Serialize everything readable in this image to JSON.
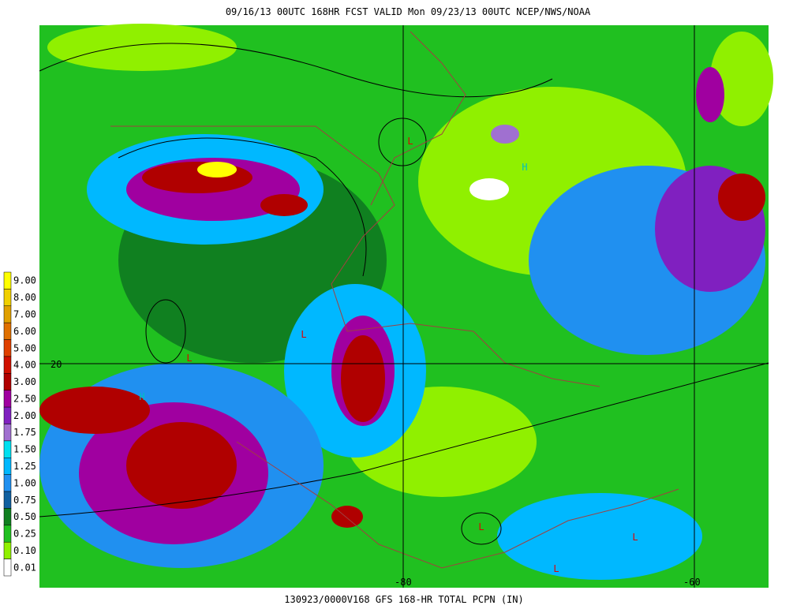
{
  "header": {
    "title": "09/16/13 00UTC  168HR  FCST VALID Mon 09/23/13 00UTC  NCEP/NWS/NOAA"
  },
  "footer": {
    "caption": "130923/0000V168 GFS 168-HR TOTAL PCPN (IN)"
  },
  "legend": {
    "levels": [
      {
        "label": "9.00",
        "color": "#ffff00"
      },
      {
        "label": "8.00",
        "color": "#f0d000"
      },
      {
        "label": "7.00",
        "color": "#e0a000"
      },
      {
        "label": "6.00",
        "color": "#e07000"
      },
      {
        "label": "5.00",
        "color": "#e04000"
      },
      {
        "label": "4.00",
        "color": "#d01000"
      },
      {
        "label": "3.00",
        "color": "#b00000"
      },
      {
        "label": "2.50",
        "color": "#a000a0"
      },
      {
        "label": "2.00",
        "color": "#8020c0"
      },
      {
        "label": "1.75",
        "color": "#a070d0"
      },
      {
        "label": "1.50",
        "color": "#00e0f0"
      },
      {
        "label": "1.25",
        "color": "#00b8ff"
      },
      {
        "label": "1.00",
        "color": "#2090f0"
      },
      {
        "label": "0.75",
        "color": "#1060a0"
      },
      {
        "label": "0.50",
        "color": "#108020"
      },
      {
        "label": "0.25",
        "color": "#20c020"
      },
      {
        "label": "0.10",
        "color": "#90f000"
      },
      {
        "label": "0.01",
        "color": "#ffffff"
      }
    ]
  },
  "map": {
    "lat_label": "20",
    "lon_labels": [
      "-80",
      "-60"
    ],
    "markers": [
      {
        "text": "L",
        "color": "#e00000"
      },
      {
        "text": "H",
        "color": "#00c0c0"
      },
      {
        "text": "L",
        "color": "#e00000"
      },
      {
        "text": "L",
        "color": "#e00000"
      },
      {
        "text": "H",
        "color": "#00c0c0"
      },
      {
        "text": "L",
        "color": "#e00000"
      },
      {
        "text": "L",
        "color": "#e00000"
      },
      {
        "text": "L",
        "color": "#e00000"
      }
    ]
  }
}
